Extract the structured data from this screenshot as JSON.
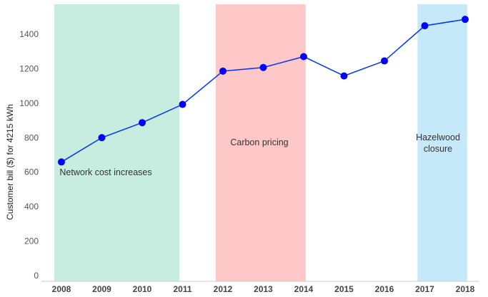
{
  "chart_data": {
    "type": "line",
    "title": "",
    "xlabel": "",
    "ylabel": "Customer bill ($) for 4215 kWh",
    "x": [
      "2008",
      "2009",
      "2010",
      "2011",
      "2012",
      "2013",
      "2014",
      "2015",
      "2016",
      "2017",
      "2018"
    ],
    "series": [
      {
        "values": [
          659,
          800,
          887,
          993,
          1186,
          1207,
          1270,
          1158,
          1245,
          1449,
          1486
        ]
      }
    ],
    "ylim": [
      0,
      1560
    ],
    "yticks": [
      0,
      200,
      400,
      600,
      800,
      1000,
      1200,
      1400
    ],
    "grid": false,
    "legend": "none",
    "line_color": "#0033ff",
    "marker_color": "#0000ff",
    "shaded_periods": [
      {
        "label": "Network cost increases",
        "x_start": 2007.82,
        "x_end": 2010.92,
        "color": "#c6ede0"
      },
      {
        "label": "Carbon pricing",
        "x_start": 2011.82,
        "x_end": 2014.05,
        "color": "#ffc8c8"
      },
      {
        "label": "Hazelwood closure",
        "x_start": 2016.82,
        "x_end": 2018.05,
        "color": "#c6e9fa"
      }
    ]
  }
}
